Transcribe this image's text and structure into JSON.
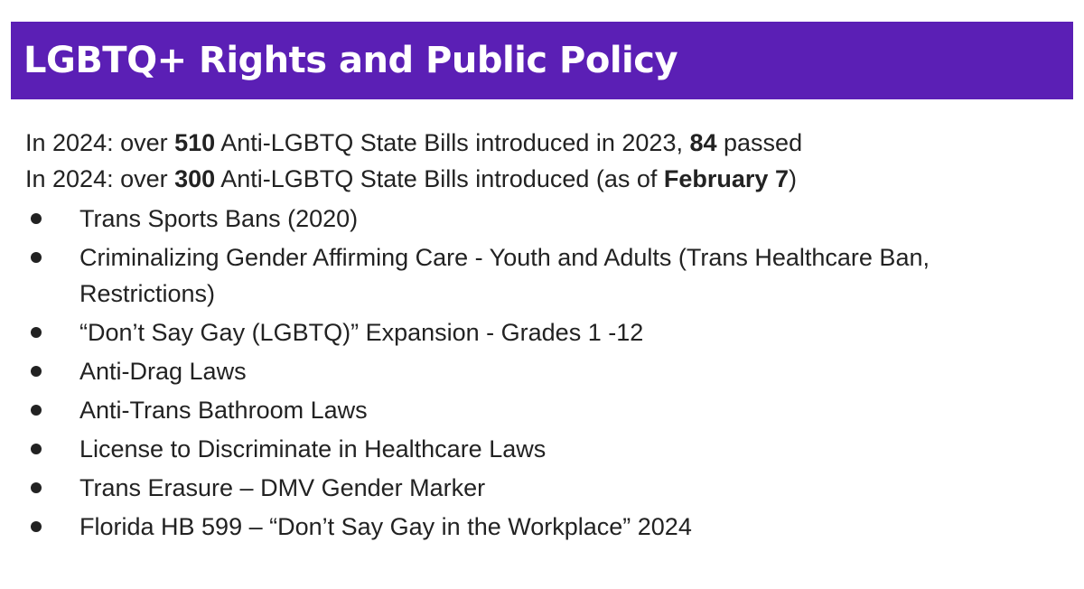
{
  "slide": {
    "title": "LGBTQ+ Rights and Public Policy",
    "colors": {
      "title_bar": "#5b1fb5",
      "title_text": "#ffffff",
      "body_text": "#222222"
    },
    "stats": [
      {
        "prefix": "In 2024: over ",
        "count": "510",
        "middle": " Anti-LGBTQ State Bills introduced in 2023, ",
        "passed": "84",
        "suffix": " passed"
      },
      {
        "prefix": "In 2024: over ",
        "count": "300",
        "middle": " Anti-LGBTQ State Bills introduced (as of ",
        "date": "February 7",
        "suffix": ")"
      }
    ],
    "bullets": [
      "Trans Sports Bans (2020)",
      "Criminalizing Gender Affirming Care - Youth and Adults  (Trans Healthcare Ban, Restrictions)",
      "“Don’t Say Gay (LGBTQ)” Expansion - Grades 1 -12",
      "Anti-Drag Laws",
      "Anti-Trans Bathroom Laws",
      "License to Discriminate in Healthcare Laws",
      "Trans Erasure – DMV Gender Marker",
      "Florida HB 599 – “Don’t Say Gay in the Workplace” 2024"
    ]
  }
}
